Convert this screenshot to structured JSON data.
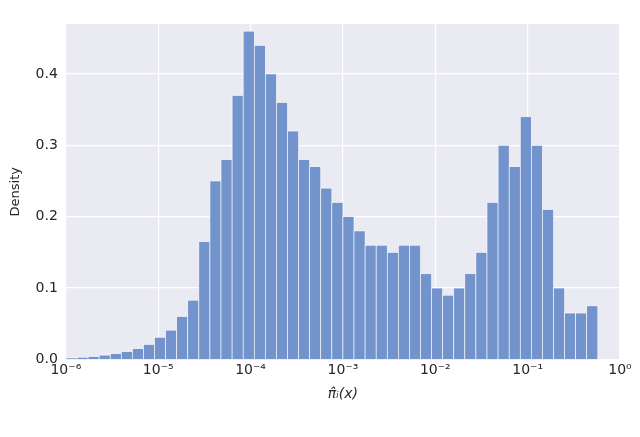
{
  "chart_data": {
    "type": "histogram",
    "xlabel": "π̂ᵢ(x)",
    "ylabel": "Density",
    "bins": [
      1e-06,
      1.318e-06,
      1.738e-06,
      2.291e-06,
      3.02e-06,
      3.981e-06,
      5.248e-06,
      6.918e-06,
      9.12e-06,
      1.202e-05,
      1.585e-05,
      2.089e-05,
      2.754e-05,
      3.631e-05,
      4.786e-05,
      6.31e-05,
      8.318e-05,
      0.0001096,
      0.0001445,
      0.0001905,
      0.0002512,
      0.0003311,
      0.0004365,
      0.0005754,
      0.0007586,
      0.001,
      0.001318,
      0.001738,
      0.002291,
      0.00302,
      0.003981,
      0.005248,
      0.006918,
      0.00912,
      0.01202,
      0.01585,
      0.02089,
      0.02754,
      0.03631,
      0.04786,
      0.0631,
      0.08318,
      0.1096,
      0.1445,
      0.1905,
      0.2512,
      0.3311,
      0.4365,
      0.5754
    ],
    "values": [
      0.002,
      0.003,
      0.004,
      0.006,
      0.008,
      0.011,
      0.015,
      0.021,
      0.031,
      0.041,
      0.06,
      0.083,
      0.165,
      0.25,
      0.28,
      0.37,
      0.46,
      0.44,
      0.4,
      0.36,
      0.32,
      0.28,
      0.27,
      0.24,
      0.22,
      0.2,
      0.18,
      0.16,
      0.16,
      0.15,
      0.16,
      0.16,
      0.12,
      0.1,
      0.09,
      0.1,
      0.12,
      0.15,
      0.22,
      0.3,
      0.27,
      0.34,
      0.3,
      0.21,
      0.1,
      0.065,
      0.065,
      0.075
    ],
    "color": "#7293cb",
    "log": "x",
    "xlim": [
      1e-06,
      1
    ],
    "xticks": [
      {
        "value": 1e-06,
        "label": "10⁻⁶"
      },
      {
        "value": 1e-05,
        "label": "10⁻⁵"
      },
      {
        "value": 0.0001,
        "label": "10⁻⁴"
      },
      {
        "value": 0.001,
        "label": "10⁻³"
      },
      {
        "value": 0.01,
        "label": "10⁻²"
      },
      {
        "value": 0.1,
        "label": "10⁻¹"
      },
      {
        "value": 1,
        "label": "10⁰"
      }
    ],
    "ylim": [
      0,
      0.47
    ],
    "yticks": [
      {
        "value": 0,
        "label": "0.0"
      },
      {
        "value": 0.1,
        "label": "0.1"
      },
      {
        "value": 0.2,
        "label": "0.2"
      },
      {
        "value": 0.3,
        "label": "0.3"
      },
      {
        "value": 0.4,
        "label": "0.4"
      }
    ],
    "grid": true
  }
}
